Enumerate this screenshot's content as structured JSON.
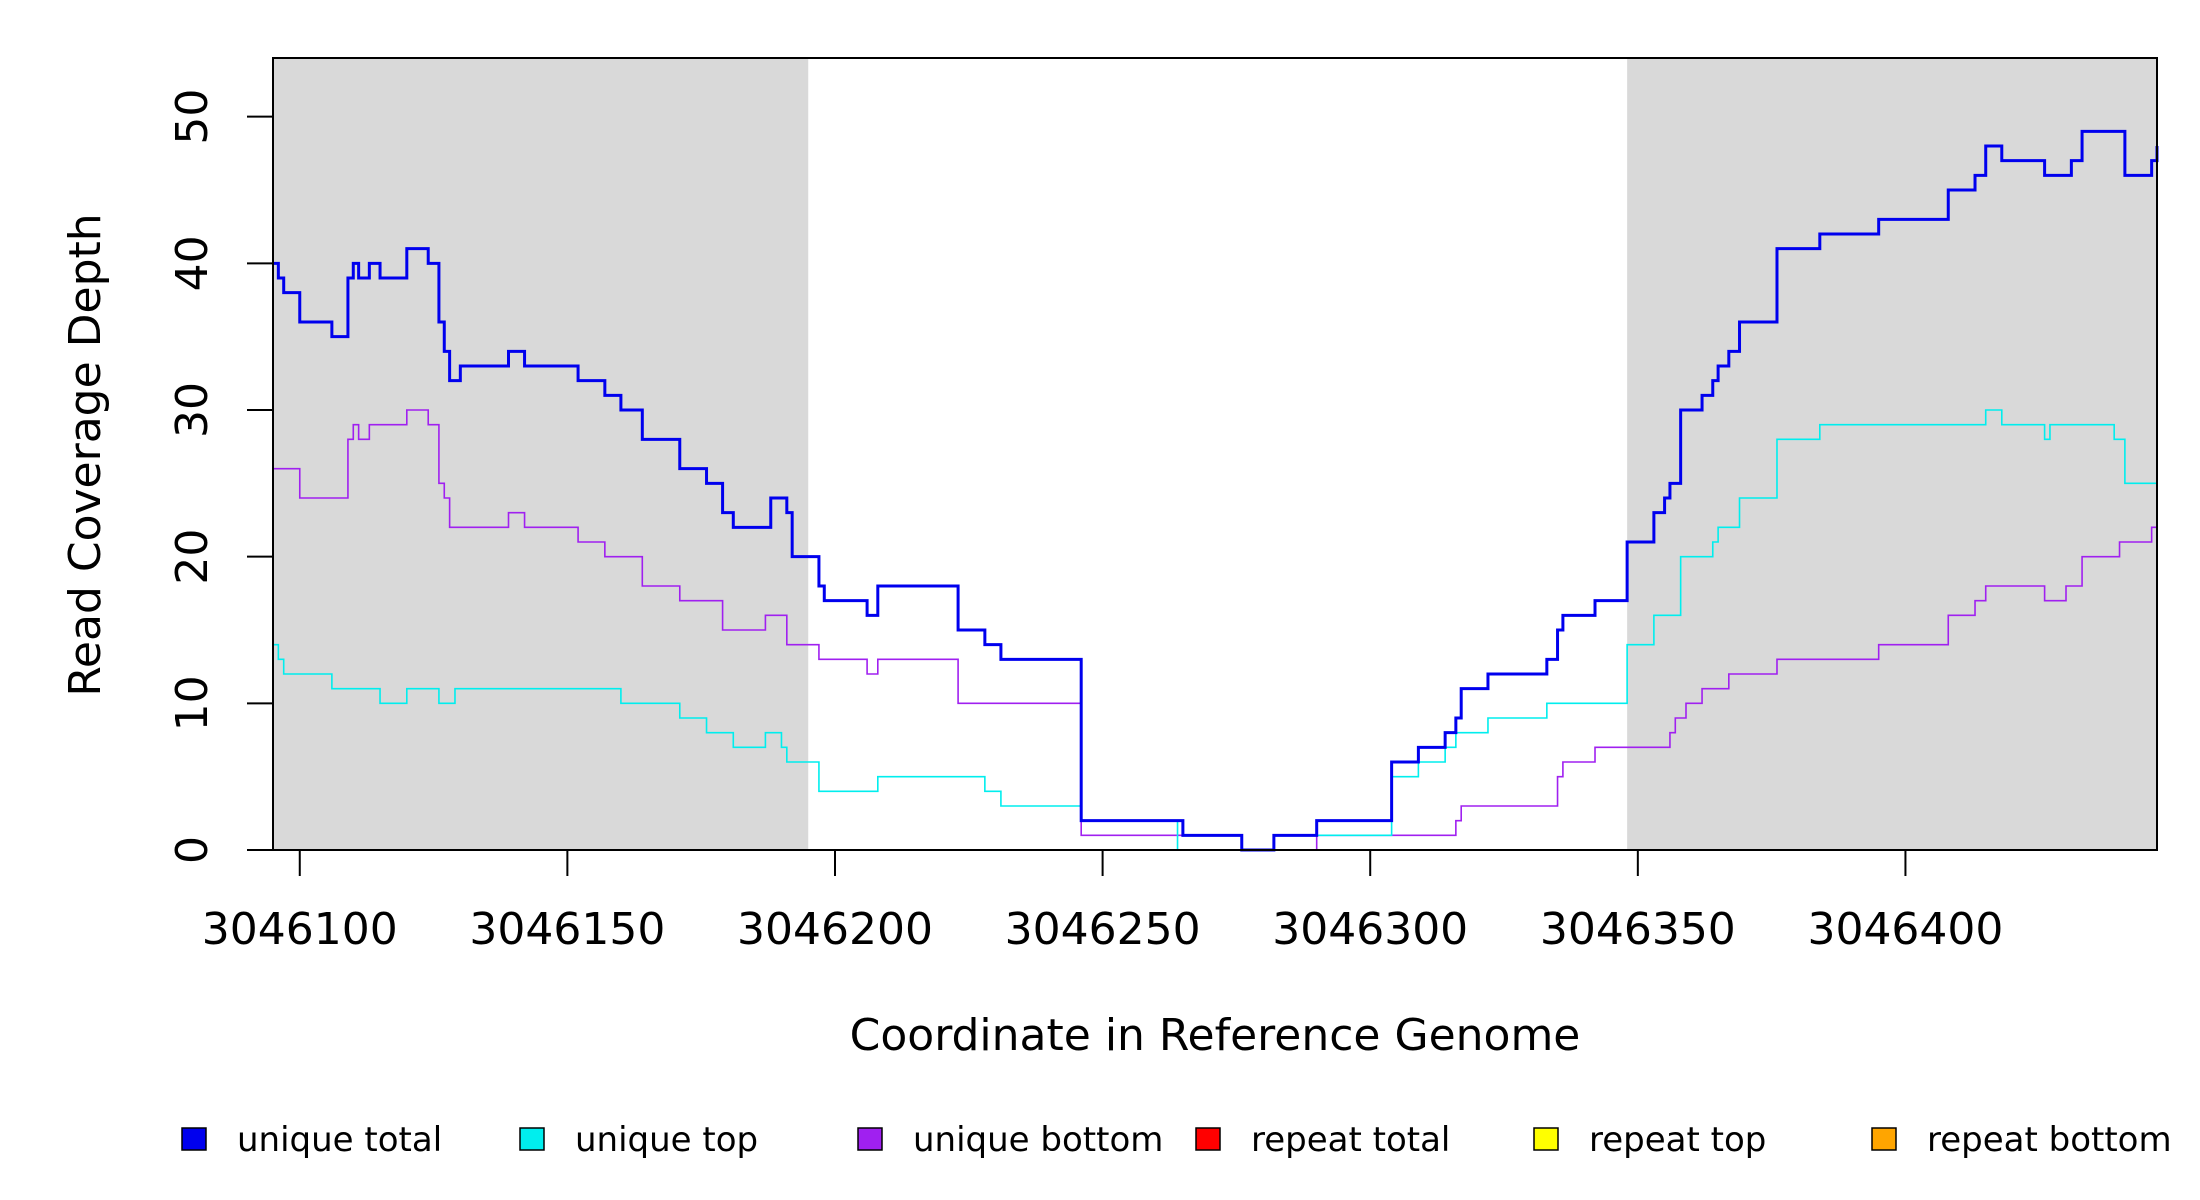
{
  "chart_data": {
    "type": "line",
    "title": "",
    "xlabel": "Coordinate in Reference Genome",
    "ylabel": "Read Coverage Depth",
    "xlim": [
      3046095,
      3046447
    ],
    "ylim": [
      0,
      54
    ],
    "x_ticks": [
      3046100,
      3046150,
      3046200,
      3046250,
      3046300,
      3046350,
      3046400
    ],
    "y_ticks": [
      0,
      10,
      20,
      30,
      40,
      50
    ],
    "grid": false,
    "shaded_regions": [
      {
        "x": [
          3046095,
          3046195
        ],
        "color": "#d9d9d9"
      },
      {
        "x": [
          3046348,
          3046447
        ],
        "color": "#d9d9d9"
      }
    ],
    "legend_position": "bottom",
    "series": [
      {
        "name": "unique total",
        "color": "#0000ee",
        "step": true,
        "points": [
          [
            3046095,
            40
          ],
          [
            3046096,
            39
          ],
          [
            3046097,
            38
          ],
          [
            3046100,
            36
          ],
          [
            3046106,
            35
          ],
          [
            3046109,
            39
          ],
          [
            3046110,
            40
          ],
          [
            3046111,
            39
          ],
          [
            3046113,
            40
          ],
          [
            3046115,
            39
          ],
          [
            3046120,
            41
          ],
          [
            3046124,
            40
          ],
          [
            3046126,
            36
          ],
          [
            3046127,
            34
          ],
          [
            3046128,
            32
          ],
          [
            3046130,
            33
          ],
          [
            3046139,
            34
          ],
          [
            3046142,
            33
          ],
          [
            3046152,
            32
          ],
          [
            3046157,
            31
          ],
          [
            3046160,
            30
          ],
          [
            3046164,
            28
          ],
          [
            3046171,
            26
          ],
          [
            3046176,
            25
          ],
          [
            3046179,
            23
          ],
          [
            3046181,
            22
          ],
          [
            3046188,
            24
          ],
          [
            3046191,
            23
          ],
          [
            3046192,
            20
          ],
          [
            3046197,
            18
          ],
          [
            3046198,
            17
          ],
          [
            3046206,
            16
          ],
          [
            3046208,
            18
          ],
          [
            3046223,
            15
          ],
          [
            3046228,
            14
          ],
          [
            3046231,
            13
          ],
          [
            3046246,
            2
          ],
          [
            3046265,
            1
          ],
          [
            3046276,
            0
          ],
          [
            3046282,
            1
          ],
          [
            3046290,
            2
          ],
          [
            3046304,
            6
          ],
          [
            3046309,
            7
          ],
          [
            3046314,
            8
          ],
          [
            3046316,
            9
          ],
          [
            3046317,
            11
          ],
          [
            3046322,
            12
          ],
          [
            3046333,
            13
          ],
          [
            3046335,
            15
          ],
          [
            3046336,
            16
          ],
          [
            3046342,
            17
          ],
          [
            3046348,
            21
          ],
          [
            3046353,
            23
          ],
          [
            3046355,
            24
          ],
          [
            3046356,
            25
          ],
          [
            3046358,
            30
          ],
          [
            3046362,
            31
          ],
          [
            3046364,
            32
          ],
          [
            3046365,
            33
          ],
          [
            3046367,
            34
          ],
          [
            3046369,
            36
          ],
          [
            3046376,
            41
          ],
          [
            3046384,
            42
          ],
          [
            3046395,
            43
          ],
          [
            3046408,
            45
          ],
          [
            3046413,
            46
          ],
          [
            3046415,
            48
          ],
          [
            3046418,
            47
          ],
          [
            3046426,
            46
          ],
          [
            3046431,
            47
          ],
          [
            3046433,
            49
          ],
          [
            3046441,
            46
          ],
          [
            3046446,
            47
          ],
          [
            3046447,
            48
          ]
        ]
      },
      {
        "name": "unique top",
        "color": "#00eeee",
        "step": true,
        "points": [
          [
            3046095,
            14
          ],
          [
            3046096,
            13
          ],
          [
            3046097,
            12
          ],
          [
            3046106,
            11
          ],
          [
            3046115,
            10
          ],
          [
            3046120,
            11
          ],
          [
            3046126,
            10
          ],
          [
            3046129,
            11
          ],
          [
            3046151,
            11
          ],
          [
            3046160,
            10
          ],
          [
            3046171,
            9
          ],
          [
            3046176,
            8
          ],
          [
            3046181,
            7
          ],
          [
            3046187,
            8
          ],
          [
            3046190,
            7
          ],
          [
            3046191,
            6
          ],
          [
            3046197,
            4
          ],
          [
            3046208,
            5
          ],
          [
            3046228,
            4
          ],
          [
            3046231,
            3
          ],
          [
            3046246,
            2
          ],
          [
            3046264,
            0
          ],
          [
            3046276,
            0
          ],
          [
            3046282,
            1
          ],
          [
            3046290,
            1
          ],
          [
            3046304,
            5
          ],
          [
            3046309,
            6
          ],
          [
            3046314,
            7
          ],
          [
            3046316,
            8
          ],
          [
            3046322,
            9
          ],
          [
            3046333,
            10
          ],
          [
            3046348,
            14
          ],
          [
            3046353,
            16
          ],
          [
            3046358,
            20
          ],
          [
            3046364,
            21
          ],
          [
            3046365,
            22
          ],
          [
            3046369,
            24
          ],
          [
            3046376,
            28
          ],
          [
            3046384,
            29
          ],
          [
            3046415,
            30
          ],
          [
            3046418,
            29
          ],
          [
            3046426,
            28
          ],
          [
            3046427,
            29
          ],
          [
            3046439,
            28
          ],
          [
            3046441,
            25
          ],
          [
            3046447,
            26
          ]
        ]
      },
      {
        "name": "unique bottom",
        "color": "#a020f0",
        "step": true,
        "points": [
          [
            3046095,
            26
          ],
          [
            3046100,
            24
          ],
          [
            3046109,
            28
          ],
          [
            3046110,
            29
          ],
          [
            3046111,
            28
          ],
          [
            3046113,
            29
          ],
          [
            3046120,
            30
          ],
          [
            3046124,
            29
          ],
          [
            3046126,
            25
          ],
          [
            3046127,
            24
          ],
          [
            3046128,
            22
          ],
          [
            3046139,
            23
          ],
          [
            3046142,
            22
          ],
          [
            3046152,
            21
          ],
          [
            3046157,
            20
          ],
          [
            3046164,
            18
          ],
          [
            3046171,
            17
          ],
          [
            3046179,
            15
          ],
          [
            3046187,
            16
          ],
          [
            3046191,
            14
          ],
          [
            3046197,
            13
          ],
          [
            3046206,
            12
          ],
          [
            3046208,
            13
          ],
          [
            3046223,
            10
          ],
          [
            3046246,
            1
          ],
          [
            3046276,
            0
          ],
          [
            3046282,
            0
          ],
          [
            3046290,
            1
          ],
          [
            3046316,
            2
          ],
          [
            3046317,
            3
          ],
          [
            3046335,
            5
          ],
          [
            3046336,
            6
          ],
          [
            3046342,
            7
          ],
          [
            3046356,
            8
          ],
          [
            3046357,
            9
          ],
          [
            3046359,
            10
          ],
          [
            3046362,
            11
          ],
          [
            3046367,
            12
          ],
          [
            3046376,
            13
          ],
          [
            3046395,
            14
          ],
          [
            3046408,
            16
          ],
          [
            3046413,
            17
          ],
          [
            3046415,
            18
          ],
          [
            3046426,
            17
          ],
          [
            3046430,
            18
          ],
          [
            3046433,
            20
          ],
          [
            3046440,
            21
          ],
          [
            3046446,
            22
          ],
          [
            3046447,
            22
          ]
        ]
      },
      {
        "name": "repeat total",
        "color": "#ff0000",
        "step": true,
        "points": [
          [
            3046095,
            0
          ],
          [
            3046447,
            0
          ]
        ]
      },
      {
        "name": "repeat top",
        "color": "#ffff00",
        "step": true,
        "points": [
          [
            3046095,
            0
          ],
          [
            3046447,
            0
          ]
        ]
      },
      {
        "name": "repeat bottom",
        "color": "#ffa500",
        "step": true,
        "points": [
          [
            3046095,
            0
          ],
          [
            3046447,
            0
          ]
        ]
      }
    ]
  }
}
